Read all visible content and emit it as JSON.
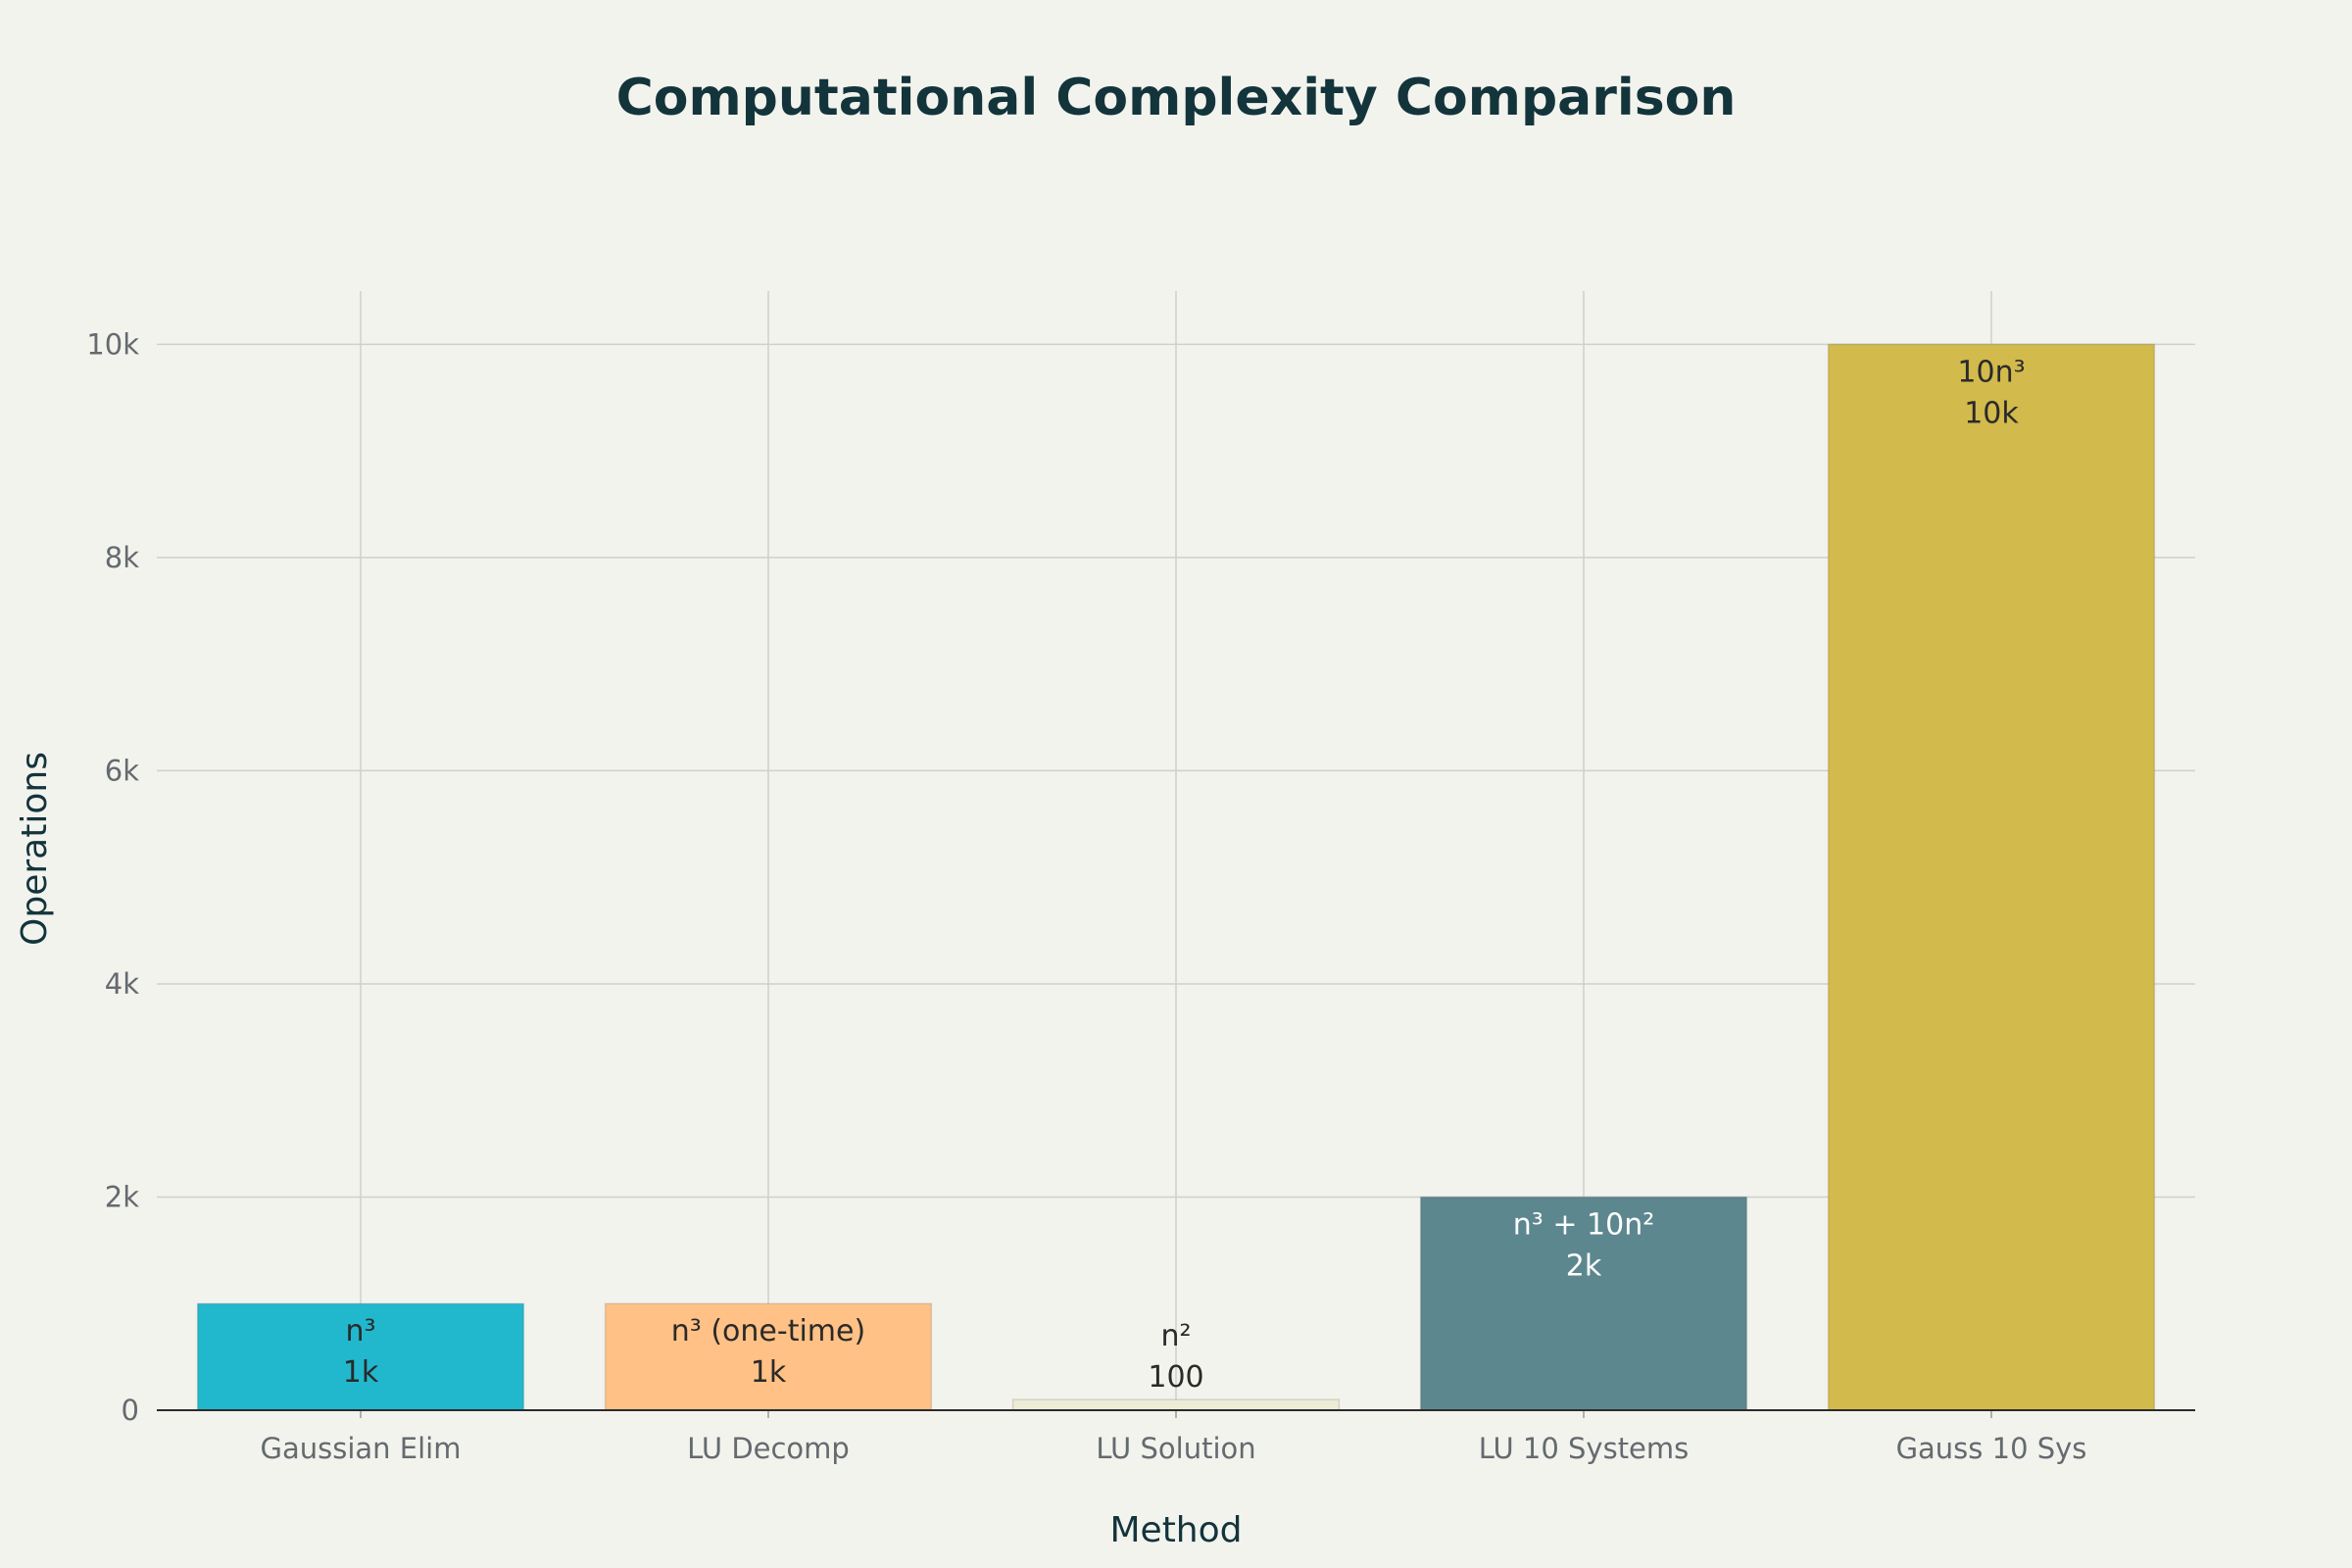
{
  "chart_data": {
    "type": "bar",
    "title": "Computational Complexity Comparison",
    "xlabel": "Method",
    "ylabel": "Operations",
    "categories": [
      "Gaussian Elim",
      "LU Decomp",
      "LU Solution",
      "LU 10 Systems",
      "Gauss 10 Sys"
    ],
    "values": [
      1000,
      1000,
      100,
      2000,
      10000
    ],
    "formulas": [
      "n³",
      "n³ (one-time)",
      "n²",
      "n³ + 10n²",
      "10n³"
    ],
    "value_labels": [
      "1k",
      "1k",
      "100",
      "2k",
      "10k"
    ],
    "colors": [
      "#21b8cd",
      "#ffc185",
      "#ecebd5",
      "#5d878f",
      "#d2ba4c"
    ],
    "label_position": [
      "inside",
      "inside",
      "outside",
      "inside",
      "inside"
    ],
    "light_text": [
      false,
      false,
      false,
      true,
      false
    ],
    "ylim": [
      0,
      10500
    ],
    "yticks": [
      0,
      2000,
      4000,
      6000,
      8000,
      10000
    ],
    "ytick_labels": [
      "0",
      "2k",
      "4k",
      "6k",
      "8k",
      "10k"
    ],
    "grid": true
  }
}
